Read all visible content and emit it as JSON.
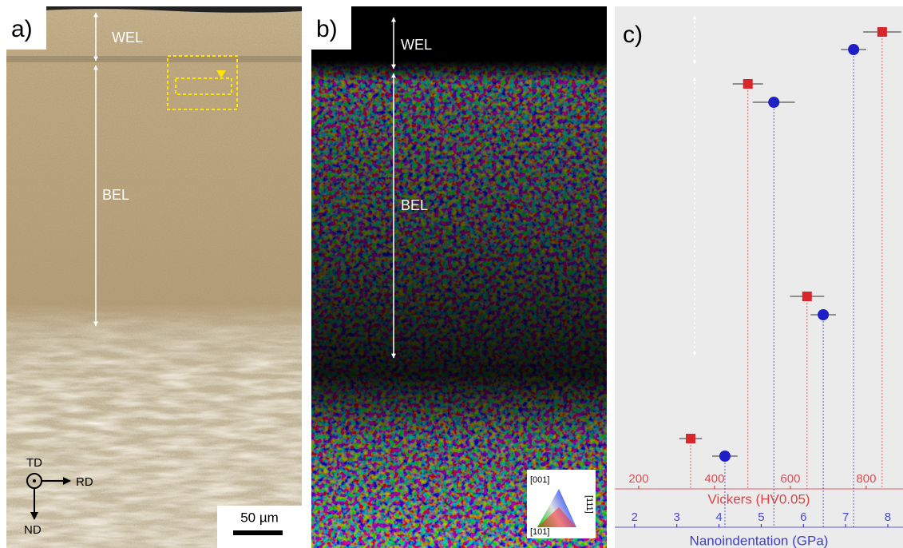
{
  "panels": {
    "a": {
      "label": "a)",
      "wel": "WEL",
      "bel": "BEL",
      "td": "TD",
      "rd": "RD",
      "nd": "ND",
      "scale_bar": "50 µm"
    },
    "b": {
      "label": "b)",
      "wel": "WEL",
      "bel": "BEL",
      "ipf": [
        "[001]",
        "[101]",
        "[111]"
      ]
    },
    "c": {
      "label": "c)"
    }
  },
  "chart_data": {
    "type": "dot",
    "vickers": {
      "title": "Vickers (HV0.05)",
      "color": "#d9262b",
      "marker": "square",
      "xlim": [
        137,
        897
      ],
      "xticks": [
        200,
        400,
        600,
        800
      ],
      "values": [
        842,
        488,
        644,
        337
      ],
      "errors": [
        50,
        40,
        45,
        30
      ]
    },
    "nanoindentation": {
      "title": "Nanoindentation (GPa)",
      "color": "#1f1fc8",
      "marker": "circle",
      "xlim": [
        1.53,
        8.36
      ],
      "xticks": [
        2,
        3,
        4,
        5,
        6,
        7,
        8
      ],
      "values": [
        7.19,
        5.3,
        6.47,
        4.14
      ],
      "errors": [
        0.3,
        0.5,
        0.3,
        0.3
      ]
    }
  }
}
